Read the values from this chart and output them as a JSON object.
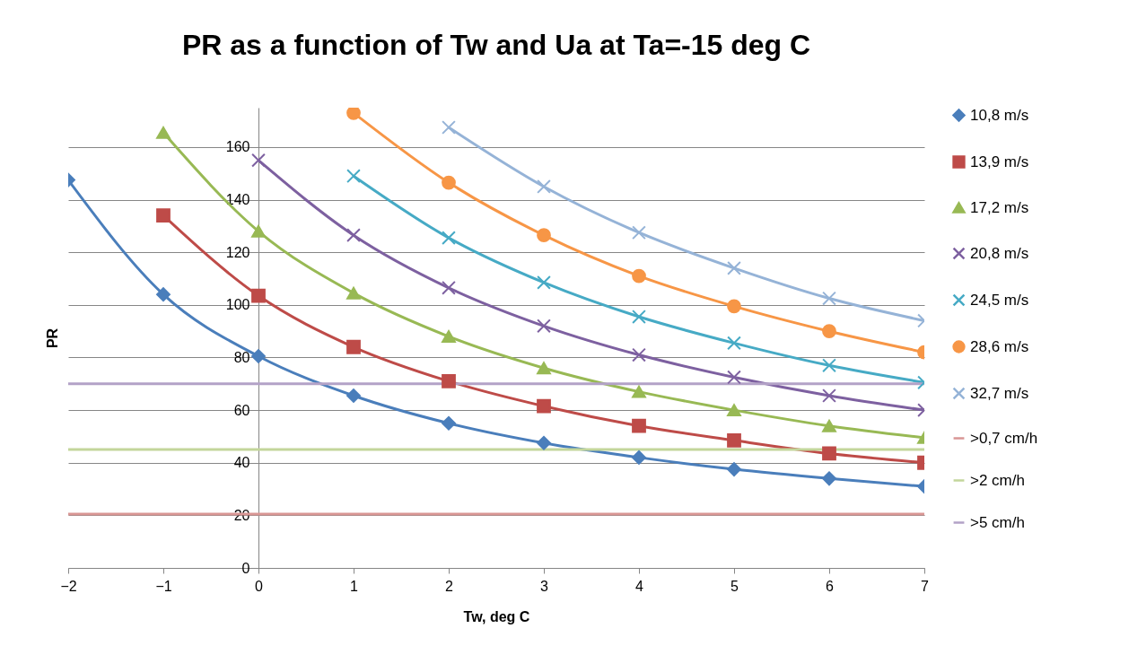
{
  "chart_data": {
    "type": "line",
    "title": "PR as a function of Tw and Ua at Ta=-15 deg C",
    "xlabel": "Tw, deg C",
    "ylabel": "PR",
    "x": [
      -2,
      -1,
      0,
      1,
      2,
      3,
      4,
      5,
      6,
      7
    ],
    "xlim": [
      -2,
      7
    ],
    "xticks": [
      -2,
      -1,
      0,
      1,
      2,
      3,
      4,
      5,
      6,
      7
    ],
    "ylim": [
      0,
      175
    ],
    "yticks": [
      0,
      20,
      40,
      60,
      80,
      100,
      120,
      140,
      160
    ],
    "grid": "y",
    "legend": "right",
    "line_style": "solid",
    "series": [
      {
        "name": "10,8 m/s",
        "color": "#4a7ebb",
        "marker": "diamond",
        "values": [
          147.5,
          104,
          80.5,
          65.5,
          55,
          47.5,
          42,
          37.5,
          34,
          31
        ]
      },
      {
        "name": "13,9 m/s",
        "color": "#be4b48",
        "marker": "square",
        "values": [
          null,
          134,
          103.5,
          84,
          71,
          61.5,
          54,
          48.5,
          43.5,
          40
        ]
      },
      {
        "name": "17,2 m/s",
        "color": "#98b954",
        "marker": "triangle",
        "values": [
          null,
          165.5,
          128,
          104.5,
          88,
          76,
          67,
          60,
          54,
          49.5
        ]
      },
      {
        "name": "20,8 m/s",
        "color": "#7d60a0",
        "marker": "cross",
        "values": [
          null,
          null,
          155,
          126.5,
          106.5,
          92,
          81,
          72.5,
          65.5,
          60
        ]
      },
      {
        "name": "24,5 m/s",
        "color": "#46aac5",
        "marker": "cross",
        "values": [
          null,
          null,
          null,
          149,
          125.5,
          108.5,
          95.5,
          85.5,
          77,
          70.5
        ]
      },
      {
        "name": "28,6 m/s",
        "color": "#f79646",
        "marker": "circle",
        "values": [
          null,
          null,
          null,
          173,
          146.5,
          126.5,
          111,
          99.5,
          90,
          82
        ]
      },
      {
        "name": "32,7 m/s",
        "color": "#95b3d7",
        "marker": "cross",
        "values": [
          null,
          null,
          null,
          null,
          167.5,
          145,
          127.5,
          114,
          102.5,
          94
        ]
      },
      {
        "name": ">0,7 cm/h",
        "color": "#d99694",
        "marker": "none",
        "values": [
          20.5,
          20.5,
          20.5,
          20.5,
          20.5,
          20.5,
          20.5,
          20.5,
          20.5,
          20.5
        ]
      },
      {
        "name": ">2 cm/h",
        "color": "#c3d69b",
        "marker": "none",
        "values": [
          45,
          45,
          45,
          45,
          45,
          45,
          45,
          45,
          45,
          45
        ]
      },
      {
        "name": ">5 cm/h",
        "color": "#b3a2c7",
        "marker": "none",
        "values": [
          70,
          70,
          70,
          70,
          70,
          70,
          70,
          70,
          70,
          70
        ]
      }
    ]
  }
}
